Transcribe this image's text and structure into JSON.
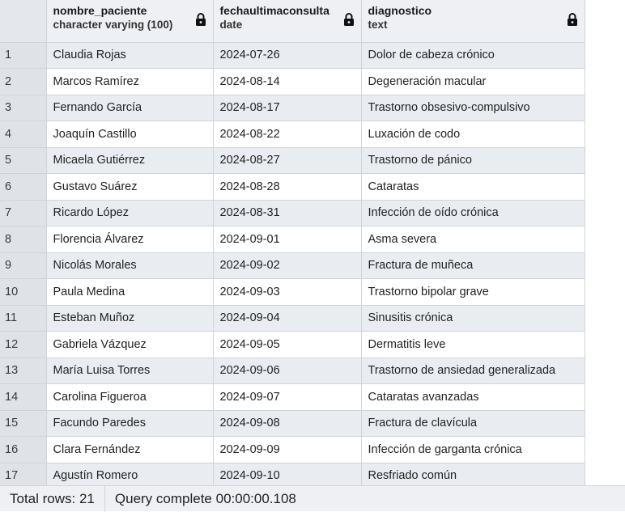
{
  "columns": [
    {
      "name": "nombre_paciente",
      "type": "character varying (100)"
    },
    {
      "name": "fechaultimaconsulta",
      "type": "date"
    },
    {
      "name": "diagnostico",
      "type": "text"
    }
  ],
  "rows": [
    {
      "n": "1",
      "nombre": "Claudia Rojas",
      "fecha": "2024-07-26",
      "diag": "Dolor de cabeza crónico"
    },
    {
      "n": "2",
      "nombre": "Marcos Ramírez",
      "fecha": "2024-08-14",
      "diag": "Degeneración macular"
    },
    {
      "n": "3",
      "nombre": "Fernando García",
      "fecha": "2024-08-17",
      "diag": "Trastorno obsesivo-compulsivo"
    },
    {
      "n": "4",
      "nombre": "Joaquín Castillo",
      "fecha": "2024-08-22",
      "diag": "Luxación de codo"
    },
    {
      "n": "5",
      "nombre": "Micaela Gutiérrez",
      "fecha": "2024-08-27",
      "diag": "Trastorno de pánico"
    },
    {
      "n": "6",
      "nombre": "Gustavo Suárez",
      "fecha": "2024-08-28",
      "diag": "Cataratas"
    },
    {
      "n": "7",
      "nombre": "Ricardo López",
      "fecha": "2024-08-31",
      "diag": "Infección de oído crónica"
    },
    {
      "n": "8",
      "nombre": "Florencia Álvarez",
      "fecha": "2024-09-01",
      "diag": "Asma severa"
    },
    {
      "n": "9",
      "nombre": "Nicolás Morales",
      "fecha": "2024-09-02",
      "diag": "Fractura de muñeca"
    },
    {
      "n": "10",
      "nombre": "Paula Medina",
      "fecha": "2024-09-03",
      "diag": "Trastorno bipolar grave"
    },
    {
      "n": "11",
      "nombre": "Esteban Muñoz",
      "fecha": "2024-09-04",
      "diag": "Sinusitis crónica"
    },
    {
      "n": "12",
      "nombre": "Gabriela Vázquez",
      "fecha": "2024-09-05",
      "diag": "Dermatitis leve"
    },
    {
      "n": "13",
      "nombre": "María Luisa Torres",
      "fecha": "2024-09-06",
      "diag": "Trastorno de ansiedad generalizada"
    },
    {
      "n": "14",
      "nombre": "Carolina Figueroa",
      "fecha": "2024-09-07",
      "diag": "Cataratas avanzadas"
    },
    {
      "n": "15",
      "nombre": "Facundo Paredes",
      "fecha": "2024-09-08",
      "diag": "Fractura de clavícula"
    },
    {
      "n": "16",
      "nombre": "Clara Fernández",
      "fecha": "2024-09-09",
      "diag": "Infección de garganta crónica"
    },
    {
      "n": "17",
      "nombre": "Agustín Romero",
      "fecha": "2024-09-10",
      "diag": "Resfriado común"
    }
  ],
  "status": {
    "total_rows": "Total rows: 21",
    "query": "Query complete 00:00:00.108"
  },
  "icons": {
    "column_lock": "lock-icon"
  }
}
